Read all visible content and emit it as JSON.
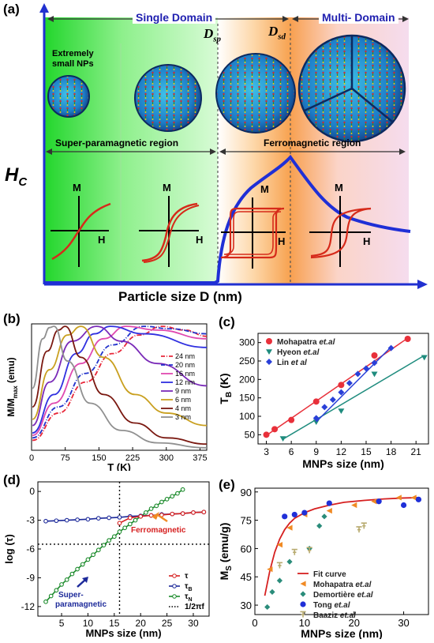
{
  "panel_a": {
    "label": "(a)",
    "single_domain": "Single Domain",
    "multi_domain": "Multi- Domain",
    "dsp": "D",
    "dsp_sub": "sp",
    "dsd": "D",
    "dsd_sub": "sd",
    "np_note_line1": "Extremely",
    "np_note_line2": "small NPs",
    "superpara_region": "Super-paramagnetic region",
    "ferro_region": "Ferromagnetic region",
    "hc": "H",
    "hc_sub": "C",
    "m": "M",
    "h": "H",
    "xlabel": "Particle size D (nm)",
    "colors": {
      "blue_line": "#1f2fd6",
      "loop": "#d62a1a",
      "title": "#2020b0"
    }
  },
  "panel_b": {
    "label": "(b)",
    "chart_data": {
      "type": "line",
      "xlabel": "T (K)",
      "ylabel": "M/M",
      "ylabel_sub": "max",
      "ylabel_unit": "(emu)",
      "xlim": [
        0,
        390
      ],
      "x_ticks": [
        "0",
        "75",
        "150",
        "225",
        "300",
        "375"
      ],
      "x_tick_values": [
        0,
        75,
        150,
        225,
        300,
        375
      ],
      "legend_position": "right",
      "series": [
        {
          "name": "24 nm",
          "color": "#e8283a",
          "style": "dashdot",
          "peak": 290,
          "points": [
            [
              2,
              0.08
            ],
            [
              60,
              0.3
            ],
            [
              120,
              0.55
            ],
            [
              180,
              0.78
            ],
            [
              240,
              0.93
            ],
            [
              290,
              1.0
            ],
            [
              340,
              0.97
            ],
            [
              390,
              0.92
            ]
          ]
        },
        {
          "name": "20 nm",
          "color": "#2233cc",
          "style": "dashdot",
          "peak": 250,
          "points": [
            [
              2,
              0.1
            ],
            [
              60,
              0.35
            ],
            [
              120,
              0.62
            ],
            [
              180,
              0.85
            ],
            [
              250,
              1.0
            ],
            [
              310,
              0.98
            ],
            [
              390,
              0.94
            ]
          ]
        },
        {
          "name": "16 nm",
          "color": "#e04ab0",
          "style": "solid",
          "peak": 210,
          "points": [
            [
              2,
              0.12
            ],
            [
              50,
              0.38
            ],
            [
              110,
              0.7
            ],
            [
              160,
              0.9
            ],
            [
              210,
              1.0
            ],
            [
              280,
              0.97
            ],
            [
              390,
              0.9
            ]
          ]
        },
        {
          "name": "12 nm",
          "color": "#3030e0",
          "style": "solid",
          "peak": 175,
          "points": [
            [
              2,
              0.14
            ],
            [
              50,
              0.45
            ],
            [
              100,
              0.78
            ],
            [
              140,
              0.94
            ],
            [
              175,
              1.0
            ],
            [
              250,
              0.94
            ],
            [
              390,
              0.83
            ]
          ]
        },
        {
          "name": "9 nm",
          "color": "#7a2ab8",
          "style": "solid",
          "peak": 145,
          "points": [
            [
              2,
              0.2
            ],
            [
              40,
              0.55
            ],
            [
              90,
              0.88
            ],
            [
              145,
              1.0
            ],
            [
              200,
              0.88
            ],
            [
              280,
              0.7
            ],
            [
              390,
              0.52
            ]
          ]
        },
        {
          "name": "6 nm",
          "color": "#c9a020",
          "style": "solid",
          "peak": 110,
          "points": [
            [
              2,
              0.25
            ],
            [
              40,
              0.65
            ],
            [
              80,
              0.93
            ],
            [
              110,
              1.0
            ],
            [
              160,
              0.75
            ],
            [
              230,
              0.45
            ],
            [
              300,
              0.3
            ],
            [
              390,
              0.2
            ]
          ]
        },
        {
          "name": "4 nm",
          "color": "#7a1810",
          "style": "solid",
          "peak": 75,
          "points": [
            [
              2,
              0.35
            ],
            [
              35,
              0.8
            ],
            [
              60,
              0.97
            ],
            [
              75,
              1.0
            ],
            [
              110,
              0.75
            ],
            [
              160,
              0.45
            ],
            [
              230,
              0.22
            ],
            [
              300,
              0.1
            ],
            [
              390,
              0.05
            ]
          ]
        },
        {
          "name": "3 nm",
          "color": "#909090",
          "style": "solid",
          "peak": 50,
          "points": [
            [
              2,
              0.5
            ],
            [
              25,
              0.9
            ],
            [
              40,
              0.99
            ],
            [
              50,
              1.0
            ],
            [
              80,
              0.72
            ],
            [
              130,
              0.38
            ],
            [
              200,
              0.16
            ],
            [
              280,
              0.06
            ],
            [
              390,
              0.02
            ]
          ]
        }
      ]
    }
  },
  "panel_c": {
    "label": "(c)",
    "chart_data": {
      "type": "scatter",
      "xlabel": "MNPs size (nm)",
      "ylabel": "T",
      "ylabel_sub": "B",
      "ylabel_unit": "(K)",
      "xlim": [
        2,
        22.5
      ],
      "ylim": [
        25,
        325
      ],
      "x_ticks": [
        "3",
        "6",
        "9",
        "12",
        "15",
        "18",
        "21"
      ],
      "x_tick_values": [
        3,
        6,
        9,
        12,
        15,
        18,
        21
      ],
      "y_ticks": [
        "50",
        "100",
        "150",
        "200",
        "250",
        "300"
      ],
      "y_tick_values": [
        50,
        100,
        150,
        200,
        250,
        300
      ],
      "legend_position": "top-left",
      "series": [
        {
          "name": "Mohapatra ",
          "name_italic": "et.al",
          "color": "#e8303a",
          "marker": "circle",
          "points": [
            [
              3,
              50
            ],
            [
              4,
              65
            ],
            [
              6,
              90
            ],
            [
              9,
              140
            ],
            [
              12,
              185
            ],
            [
              16,
              265
            ],
            [
              20,
              310
            ]
          ],
          "fit": [
            [
              3,
              48
            ],
            [
              20,
              312
            ]
          ]
        },
        {
          "name": "Hyeon ",
          "name_italic": "et.al",
          "color": "#1f8c7e",
          "marker": "triangle",
          "points": [
            [
              5,
              40
            ],
            [
              9,
              85
            ],
            [
              12,
              115
            ],
            [
              16,
              215
            ],
            [
              22,
              260
            ]
          ],
          "fit": [
            [
              5,
              38
            ],
            [
              22,
              265
            ]
          ]
        },
        {
          "name": "Lin ",
          "name_italic": "et al",
          "color": "#2a40d8",
          "marker": "diamond",
          "points": [
            [
              9,
              95
            ],
            [
              10,
              125
            ],
            [
              11,
              145
            ],
            [
              12,
              165
            ],
            [
              13,
              190
            ],
            [
              14,
              215
            ],
            [
              15,
              230
            ],
            [
              16,
              245
            ],
            [
              18,
              285
            ]
          ],
          "fit": [
            [
              9,
              85
            ],
            [
              18,
              288
            ]
          ]
        }
      ]
    }
  },
  "panel_d": {
    "label": "(d)",
    "chart_data": {
      "type": "line",
      "xlabel": "MNPs size (nm)",
      "ylabel": "log (τ)",
      "xlim": [
        0.5,
        33
      ],
      "ylim": [
        -13,
        1
      ],
      "x_ticks": [
        "5",
        "10",
        "15",
        "20",
        "25",
        "30"
      ],
      "x_tick_values": [
        5,
        10,
        15,
        20,
        25,
        30
      ],
      "y_ticks": [
        "0",
        "-3",
        "-6",
        "-9",
        "-12"
      ],
      "y_tick_values": [
        0,
        -3,
        -6,
        -9,
        -12
      ],
      "vline": 16,
      "hline": -5.5,
      "legend_position": "bottom-right",
      "legend": [
        {
          "name": "τ",
          "color": "#d62020",
          "kind": "marker"
        },
        {
          "name": "τ",
          "sub": "B",
          "color": "#1d2a9a",
          "kind": "marker"
        },
        {
          "name": "τ",
          "sub": "N",
          "color": "#1a8a2a",
          "kind": "marker"
        },
        {
          "name": "1/2πf",
          "color": "#000000",
          "kind": "dotted"
        }
      ],
      "series": [
        {
          "name": "τN",
          "color": "#1a8a2a",
          "points": [
            [
              2,
              -11.5
            ],
            [
              3,
              -10.9
            ],
            [
              4,
              -10.3
            ],
            [
              5,
              -9.7
            ],
            [
              6,
              -9.2
            ],
            [
              7,
              -8.6
            ],
            [
              8,
              -8.1
            ],
            [
              9,
              -7.6
            ],
            [
              10,
              -7.1
            ],
            [
              11,
              -6.6
            ],
            [
              12,
              -6.1
            ],
            [
              13,
              -5.6
            ],
            [
              14,
              -5.1
            ],
            [
              15,
              -4.7
            ],
            [
              16,
              -4.2
            ],
            [
              17,
              -3.8
            ],
            [
              18,
              -3.4
            ],
            [
              19,
              -3.0
            ],
            [
              20,
              -2.6
            ],
            [
              21,
              -2.2
            ],
            [
              22,
              -1.8
            ],
            [
              23,
              -1.5
            ],
            [
              24,
              -1.1
            ],
            [
              25,
              -0.8
            ],
            [
              26,
              -0.5
            ],
            [
              27,
              -0.2
            ],
            [
              28,
              0.2
            ]
          ]
        },
        {
          "name": "τB",
          "color": "#1d2a9a",
          "points": [
            [
              2,
              -3.1
            ],
            [
              4,
              -3.05
            ],
            [
              6,
              -3.0
            ],
            [
              8,
              -2.95
            ],
            [
              10,
              -2.9
            ],
            [
              12,
              -2.8
            ],
            [
              14,
              -2.75
            ],
            [
              16,
              -2.7
            ],
            [
              18,
              -2.6
            ],
            [
              20,
              -2.55
            ],
            [
              22,
              -2.5
            ],
            [
              24,
              -2.4
            ],
            [
              26,
              -2.35
            ],
            [
              28,
              -2.3
            ],
            [
              30,
              -2.2
            ],
            [
              32,
              -2.15
            ]
          ]
        },
        {
          "name": "τ",
          "color": "#d62020",
          "points": [
            [
              16,
              -3.3
            ],
            [
              18,
              -2.75
            ],
            [
              20,
              -2.6
            ],
            [
              22,
              -2.5
            ],
            [
              24,
              -2.45
            ],
            [
              26,
              -2.35
            ],
            [
              28,
              -2.3
            ],
            [
              30,
              -2.2
            ],
            [
              32,
              -2.15
            ]
          ]
        }
      ],
      "annotations": {
        "ferro": "Ferromagnetic",
        "superpara_line1": "Super-",
        "superpara_line2": "paramagnetic"
      }
    }
  },
  "panel_e": {
    "label": "(e)",
    "chart_data": {
      "type": "scatter",
      "xlabel": "MNPs size (nm)",
      "ylabel": "M",
      "ylabel_sub": "S",
      "ylabel_unit": "(emu/g)",
      "xlim": [
        0,
        35
      ],
      "ylim": [
        25,
        92
      ],
      "x_ticks": [
        "0",
        "10",
        "20",
        "30"
      ],
      "x_tick_values": [
        0,
        10,
        20,
        30
      ],
      "y_ticks": [
        "30",
        "45",
        "60",
        "75",
        "90"
      ],
      "y_tick_values": [
        30,
        45,
        60,
        75,
        90
      ],
      "legend_position": "bottom-right",
      "fit": {
        "name": "Fit curve",
        "color": "#d62020",
        "points": [
          [
            2,
            35
          ],
          [
            3,
            48
          ],
          [
            4,
            58
          ],
          [
            5,
            65
          ],
          [
            6,
            70
          ],
          [
            7,
            73.5
          ],
          [
            8,
            76
          ],
          [
            10,
            79
          ],
          [
            12,
            81
          ],
          [
            15,
            83
          ],
          [
            18,
            84.5
          ],
          [
            22,
            85.5
          ],
          [
            26,
            86.3
          ],
          [
            30,
            86.8
          ],
          [
            33,
            87
          ]
        ]
      },
      "series": [
        {
          "name": "Mohapatra ",
          "name_italic": "et.al",
          "color": "#f08a24",
          "marker": "triangle-left",
          "points": [
            [
              3,
              49
            ],
            [
              5,
              62
            ],
            [
              7,
              71
            ],
            [
              10,
              78
            ],
            [
              15,
              80
            ],
            [
              20,
              83
            ],
            [
              24,
              85
            ],
            [
              29,
              87
            ],
            [
              32,
              87
            ]
          ]
        },
        {
          "name": "Demortière ",
          "name_italic": "et.al",
          "color": "#2a8c7a",
          "marker": "diamond",
          "points": [
            [
              2.5,
              29
            ],
            [
              3.5,
              37
            ],
            [
              5,
              43
            ],
            [
              7,
              53
            ],
            [
              11,
              60
            ],
            [
              13,
              72
            ],
            [
              14,
              77
            ]
          ]
        },
        {
          "name": "Tong ",
          "name_italic": "et.al",
          "color": "#2030d8",
          "marker": "circle",
          "points": [
            [
              6,
              77
            ],
            [
              8,
              78
            ],
            [
              10,
              79
            ],
            [
              15,
              84
            ],
            [
              25,
              85
            ],
            [
              30,
              83
            ],
            [
              33,
              86
            ]
          ]
        },
        {
          "name": "Baaziz ",
          "name_italic": "et.al",
          "color": "#b8ab70",
          "marker": "cross",
          "points": [
            [
              5,
              51
            ],
            [
              8,
              58
            ],
            [
              11,
              59
            ],
            [
              21,
              70
            ],
            [
              22,
              72
            ]
          ]
        }
      ]
    }
  }
}
